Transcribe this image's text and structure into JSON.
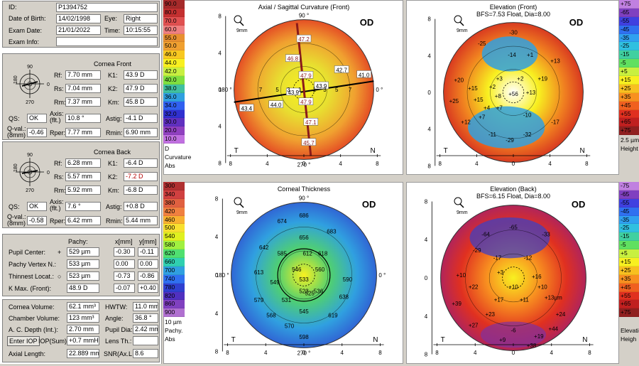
{
  "patient": {
    "id_label": "ID:",
    "id": "P1394752",
    "dob_label": "Date of Birth:",
    "dob": "14/02/1998",
    "eye_label": "Eye:",
    "eye": "Right",
    "exam_date_label": "Exam Date:",
    "exam_date": "21/01/2022",
    "time_label": "Time:",
    "time": "10:15:55",
    "exam_info_label": "Exam Info:",
    "exam_info": ""
  },
  "front": {
    "title": "Cornea Front",
    "rf_label": "Rf:",
    "rf": "7.70 mm",
    "k1_label": "K1:",
    "k1": "43.9 D",
    "rs_label": "Rs:",
    "rs": "7.04 mm",
    "k2_label": "K2:",
    "k2": "47.9 D",
    "rm_label": "Rm:",
    "rm": "7.37 mm",
    "km_label": "Km:",
    "km": "45.8 D",
    "qs_label": "QS:",
    "qs": "OK",
    "axis_label": "Axis: (flt.)",
    "axis": "10.8 °",
    "astig_label": "Astig:",
    "astig": "-4.1 D",
    "qval_label": "Q-val.: (8mm)",
    "qval": "-0.46",
    "rper_label": "Rper:",
    "rper": "7.77 mm",
    "rmin_label": "Rmin:",
    "rmin": "6.90 mm",
    "dial": {
      "top": "90",
      "left": "180",
      "right": "0",
      "bottom": "270"
    }
  },
  "back": {
    "title": "Cornea Back",
    "rf_label": "Rf:",
    "rf": "6.28 mm",
    "k1_label": "K1:",
    "k1": "-6.4 D",
    "rs_label": "Rs:",
    "rs": "5.57 mm",
    "k2_label": "K2:",
    "k2": "-7.2 D",
    "rm_label": "Rm:",
    "rm": "5.92 mm",
    "km_label": "Km:",
    "km": "-6.8 D",
    "qs_label": "QS:",
    "qs": "OK",
    "axis_label": "Axis: (flt.)",
    "axis": "7.6 °",
    "astig_label": "Astig:",
    "astig": "+0.8 D",
    "qval_label": "Q-val.: (8mm)",
    "qval": "-0.58",
    "rper_label": "Rper:",
    "rper": "6.42 mm",
    "rmin_label": "Rmin:",
    "rmin": "5.44 mm",
    "dial": {
      "top": "90",
      "left": "180",
      "right": "0",
      "bottom": "270"
    }
  },
  "pachy": {
    "col_pachy": "Pachy:",
    "col_x": "x[mm]",
    "col_y": "y[mm]",
    "rows": [
      {
        "label": "Pupil Center:",
        "sym": "+",
        "pachy": "529 µm",
        "x": "-0.30",
        "y": "-0.11"
      },
      {
        "label": "Pachy Vertex N.:",
        "sym": "",
        "pachy": "533 µm",
        "x": "0.00",
        "y": "0.00"
      },
      {
        "label": "Thinnest Locat.:",
        "sym": "○",
        "pachy": "523 µm",
        "x": "-0.73",
        "y": "-0.86"
      },
      {
        "label": "K Max. (Front):",
        "sym": "",
        "pachy": "48.9 D",
        "x": "-0.07",
        "y": "+0.40"
      }
    ]
  },
  "volume": {
    "cv_label": "Cornea Volume:",
    "cv": "62.1 mm³",
    "hwtw_label": "HWTW:",
    "hwtw": "11.0 mm",
    "chv_label": "Chamber Volume:",
    "chv": "123 mm³",
    "angle_label": "Angle:",
    "angle": "36.8 °",
    "acd_label": "A. C. Depth (Int.):",
    "acd": "2.70 mm",
    "pupil_label": "Pupil Dia:",
    "pupil": "2.42 mm",
    "enter_iop": "Enter IOP",
    "iop_label": "IOP(Sum):",
    "iop": "+0.7 mmHg",
    "lens_label": "Lens Th.:",
    "lens": "",
    "al_label": "Axial Length:",
    "al": "22.889 mm",
    "snr_label": "SNR(Ax.Le",
    "snr": "8.6"
  },
  "maps": [
    {
      "title": "Axial / Sagittal Curvature (Front)",
      "subtitle": "",
      "od": "OD",
      "zoom": "9mm",
      "T": "T",
      "N": "N",
      "deg": {
        "a90": "90 °",
        "a270": "270 °",
        "a0": "0 °",
        "a180": "180 °"
      },
      "xticks": [
        "8",
        "4",
        "0",
        "4",
        "8"
      ],
      "yticks": [
        "8",
        "4",
        "0",
        "4",
        "8"
      ],
      "labels": [
        "47.2",
        "46.8",
        "47.9",
        "43.9",
        "43.9",
        "47.9",
        "47.1",
        "45.7",
        "42.7",
        "41.0",
        "44.0",
        "43.4",
        "7",
        "5",
        "3",
        "1",
        "1",
        "3",
        "5",
        "7"
      ],
      "scale": [
        "90.0",
        "80.0",
        "70.0",
        "60.0",
        "55.0",
        "50.0",
        "46.0",
        "44.0",
        "42.0",
        "40.0",
        "38.0",
        "36.0",
        "34.0",
        "32.0",
        "30.0",
        "20.0",
        "10.0"
      ],
      "scale_colors": [
        "#a52a2a",
        "#c43030",
        "#e05050",
        "#f08080",
        "#e89030",
        "#f0a030",
        "#f8c820",
        "#f8f020",
        "#c8f040",
        "#80e040",
        "#40c0a0",
        "#30a0e0",
        "#3060f0",
        "#3030d0",
        "#6030c0",
        "#9040c0",
        "#c070e0"
      ],
      "unit": "D",
      "kind": "Curvature",
      "mode": "Abs"
    },
    {
      "title": "Elevation (Front)",
      "subtitle": "BFS=7.53 Float, Dia=8.00",
      "od": "OD",
      "zoom": "9mm",
      "T": "T",
      "N": "N",
      "xticks": [
        "8",
        "4",
        "0",
        "4",
        "8"
      ],
      "yticks": [
        "8",
        "4",
        "0",
        "4",
        "8"
      ],
      "labels": [
        "-30",
        "-25",
        "-14",
        "+1",
        "+13",
        "+20",
        "+15",
        "+3",
        "+2",
        "+19",
        "+25",
        "+2",
        "+15",
        "+56",
        "+13",
        "+7",
        "-10",
        "+12",
        "-17",
        "-11",
        "-29",
        "-32",
        "+4",
        "+7",
        "+8"
      ],
      "scale": [
        "+75",
        "-65",
        "-55",
        "-45",
        "-35",
        "-25",
        "-15",
        "-5",
        "+5",
        "+15",
        "+25",
        "+35",
        "+45",
        "+55",
        "+65",
        "+75"
      ],
      "scale_colors": [
        "#c080e0",
        "#8040c0",
        "#4040e0",
        "#3070f0",
        "#30a0f0",
        "#30c0e0",
        "#40d0a0",
        "#60e060",
        "#c8f040",
        "#f8f020",
        "#f8c020",
        "#f89020",
        "#f06020",
        "#e03020",
        "#c02020",
        "#902020"
      ],
      "unit": "2.5 µm",
      "kind": "Height",
      "mode": ""
    },
    {
      "title": "Corneal Thickness",
      "subtitle": "",
      "od": "OD",
      "zoom": "9mm",
      "T": "T",
      "N": "N",
      "deg": {
        "a90": "90 °",
        "a270": "270 °",
        "a0": "0 °",
        "a180": "180 °"
      },
      "xticks": [
        "8",
        "4",
        "0",
        "4",
        "8"
      ],
      "yticks": [
        "8",
        "4",
        "0",
        "4",
        "8"
      ],
      "labels": [
        "686",
        "674",
        "683",
        "642",
        "656",
        "585",
        "618",
        "612",
        "613",
        "546",
        "560",
        "590",
        "549",
        "533",
        "579",
        "523",
        "536",
        "638",
        "531",
        "568",
        "619",
        "570",
        "545",
        "598",
        "525"
      ],
      "scale": [
        "300",
        "340",
        "380",
        "420",
        "460",
        "500",
        "540",
        "580",
        "620",
        "660",
        "700",
        "740",
        "780",
        "820",
        "860",
        "900"
      ],
      "scale_colors": [
        "#b03030",
        "#d04040",
        "#e06040",
        "#f08040",
        "#f8b030",
        "#f8e030",
        "#e0f020",
        "#a0f040",
        "#50e070",
        "#30d0b0",
        "#30a0e0",
        "#3070f0",
        "#3040d0",
        "#5030c0",
        "#8040c0",
        "#b070d0"
      ],
      "unit": "10 µm",
      "kind": "Pachy.",
      "mode": "Abs"
    },
    {
      "title": "Elevation (Back)",
      "subtitle": "BFS=6.15 Float, Dia=8.00",
      "od": "OD",
      "zoom": "9mm",
      "T": "T",
      "N": "N",
      "xticks": [
        "8",
        "4",
        "0",
        "4",
        "8"
      ],
      "yticks": [
        "8",
        "4",
        "0",
        "4",
        "8"
      ],
      "labels": [
        "-64",
        "-65",
        "-33",
        "-29",
        "-17",
        "-12",
        "+10",
        "+3",
        "+16",
        "+22",
        "+10",
        "+10",
        "+39",
        "+17",
        "+11",
        "+13µm",
        "+24",
        "+23",
        "+27",
        "-6",
        "+9",
        "+19",
        "+44",
        "+38"
      ],
      "scale": [
        "-75",
        "-65",
        "-55",
        "-45",
        "-35",
        "-25",
        "-15",
        "-5",
        "+5",
        "+15",
        "+25",
        "+35",
        "+45",
        "+55",
        "+65",
        "+75"
      ],
      "scale_colors": [
        "#c080e0",
        "#8040c0",
        "#4040e0",
        "#3070f0",
        "#30a0f0",
        "#30c0e0",
        "#40d0a0",
        "#60e060",
        "#c8f040",
        "#f8f020",
        "#f8c020",
        "#f89020",
        "#f06020",
        "#e03020",
        "#c02020",
        "#902020"
      ],
      "unit": "",
      "kind": "Elevation",
      "mode": "Heigh"
    }
  ]
}
